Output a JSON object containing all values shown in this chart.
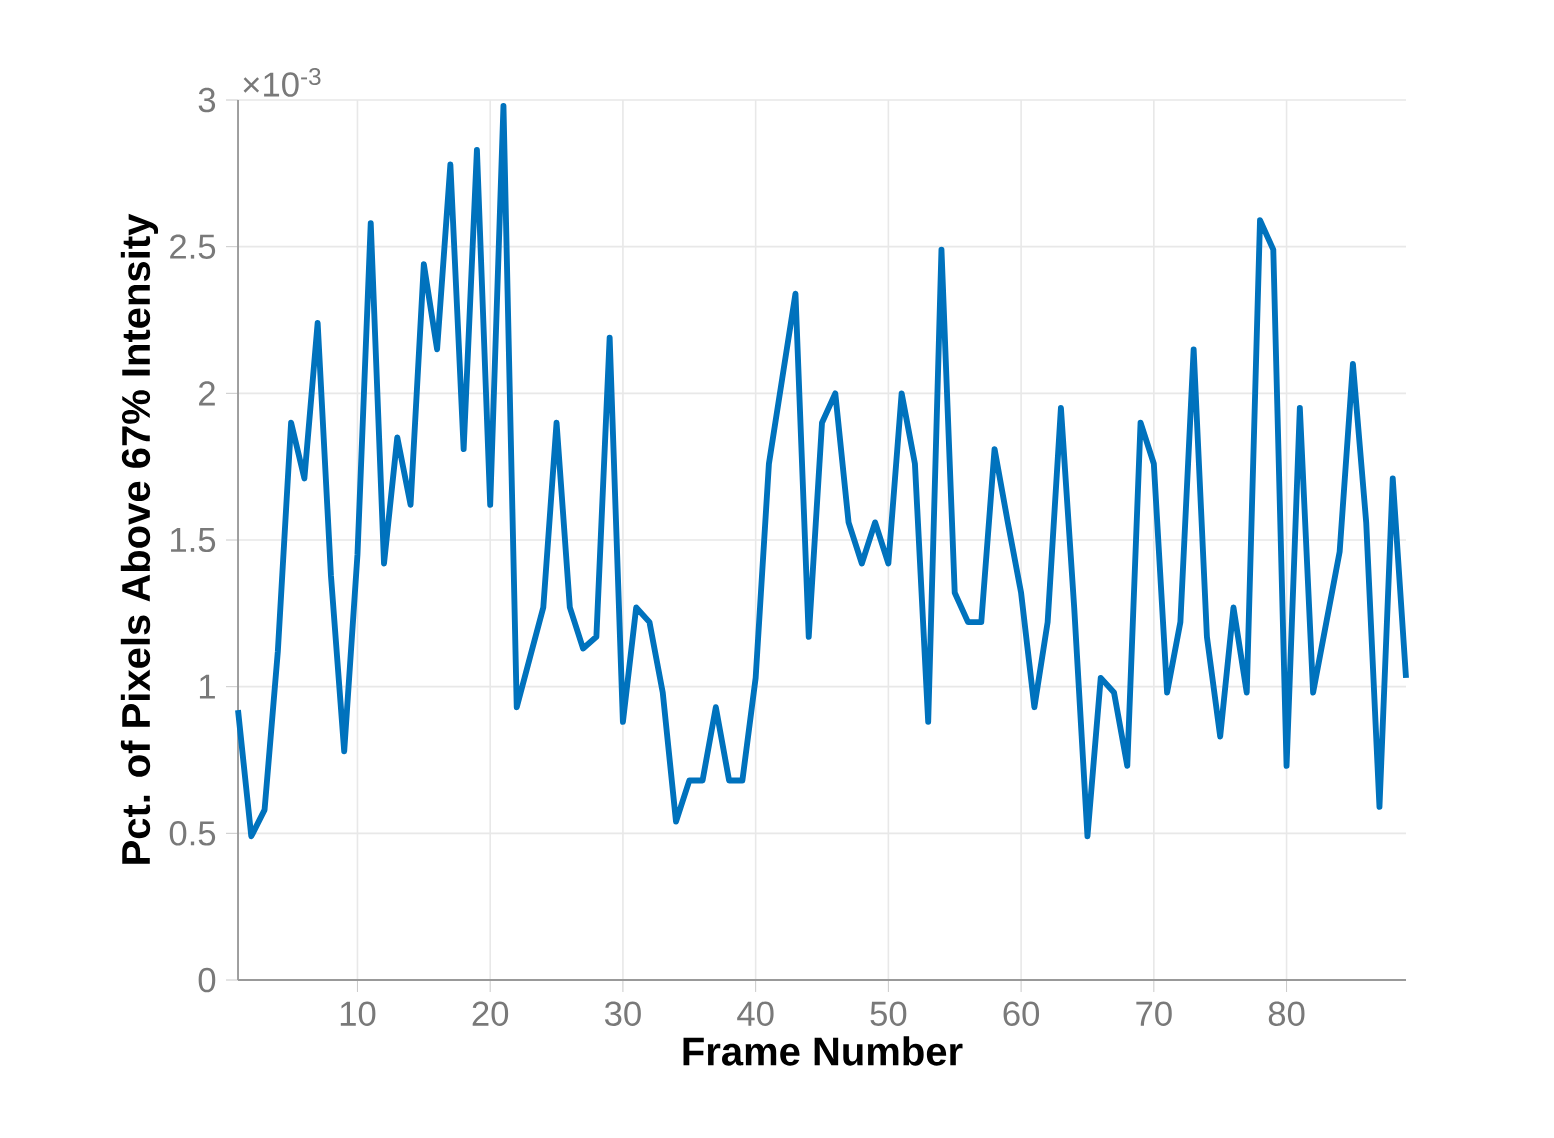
{
  "chart_data": {
    "type": "line",
    "xlabel": "Frame Number",
    "ylabel": "Pct. of Pixels Above 67% Intensity",
    "annotations": [
      "×10$^{-3}$"
    ],
    "x": [
      1,
      2,
      3,
      4,
      5,
      6,
      7,
      8,
      9,
      10,
      11,
      12,
      13,
      14,
      15,
      16,
      17,
      18,
      19,
      20,
      21,
      22,
      23,
      24,
      25,
      26,
      27,
      28,
      29,
      30,
      31,
      32,
      33,
      34,
      35,
      36,
      37,
      38,
      39,
      40,
      41,
      42,
      43,
      44,
      45,
      46,
      47,
      48,
      49,
      50,
      51,
      52,
      53,
      54,
      55,
      56,
      57,
      58,
      59,
      60,
      61,
      62,
      63,
      64,
      65,
      66,
      67,
      68,
      69,
      70,
      71,
      72,
      73,
      74,
      75,
      76,
      77,
      78,
      79,
      80,
      81,
      82,
      83,
      84,
      85,
      86,
      87,
      88,
      89
    ],
    "series": [
      {
        "color": "#0072bd",
        "values": [
          0.92,
          0.49,
          0.58,
          1.12,
          1.9,
          1.71,
          2.24,
          1.38,
          0.78,
          1.45,
          2.58,
          1.42,
          1.85,
          1.62,
          2.44,
          2.15,
          2.78,
          1.81,
          2.83,
          1.62,
          2.98,
          0.93,
          1.1,
          1.27,
          1.9,
          1.27,
          1.13,
          1.17,
          2.19,
          0.88,
          1.27,
          1.22,
          0.98,
          0.54,
          0.68,
          0.68,
          0.93,
          0.68,
          0.68,
          1.03,
          1.76,
          2.05,
          2.34,
          1.17,
          1.9,
          2.0,
          1.56,
          1.42,
          1.56,
          1.42,
          2.0,
          1.76,
          0.88,
          2.49,
          1.32,
          1.22,
          1.22,
          1.81,
          1.56,
          1.32,
          0.93,
          1.22,
          1.95,
          1.27,
          0.49,
          1.03,
          0.98,
          0.73,
          1.9,
          1.76,
          0.98,
          1.22,
          2.15,
          1.17,
          0.83,
          1.27,
          0.98,
          2.59,
          2.49,
          0.73,
          1.95,
          0.98,
          1.22,
          1.46,
          2.1,
          1.56,
          0.59,
          1.71,
          1.03
        ]
      }
    ],
    "xlim": [
      1,
      89
    ],
    "ylim": [
      0,
      3
    ],
    "xticks": [
      10,
      20,
      30,
      40,
      50,
      60,
      70,
      80
    ],
    "yticks": [
      0,
      0.5,
      1,
      1.5,
      2,
      2.5,
      3
    ],
    "grid": true,
    "marker": "none",
    "line_style": "solid"
  }
}
